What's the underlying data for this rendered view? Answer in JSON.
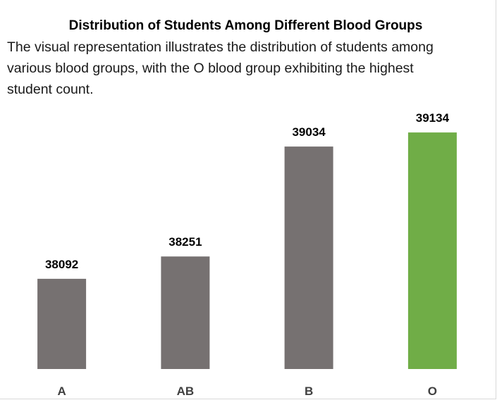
{
  "chart_data": {
    "type": "bar",
    "title": "Distribution of Students Among Different Blood Groups",
    "subtitle": "The visual representation illustrates the distribution of students among various blood groups, with the O blood group exhibiting the highest student count.",
    "categories": [
      "A",
      "AB",
      "B",
      "O"
    ],
    "values": [
      38092,
      38251,
      39034,
      39134
    ],
    "colors": [
      "#767171",
      "#767171",
      "#767171",
      "#70AD47"
    ],
    "highlight_color": "#70AD47",
    "bar_color": "#767171",
    "xlabel": "",
    "ylabel": "",
    "ylim": [
      37450,
      39300
    ],
    "grid": false,
    "data_labels": true,
    "legend": "none"
  }
}
